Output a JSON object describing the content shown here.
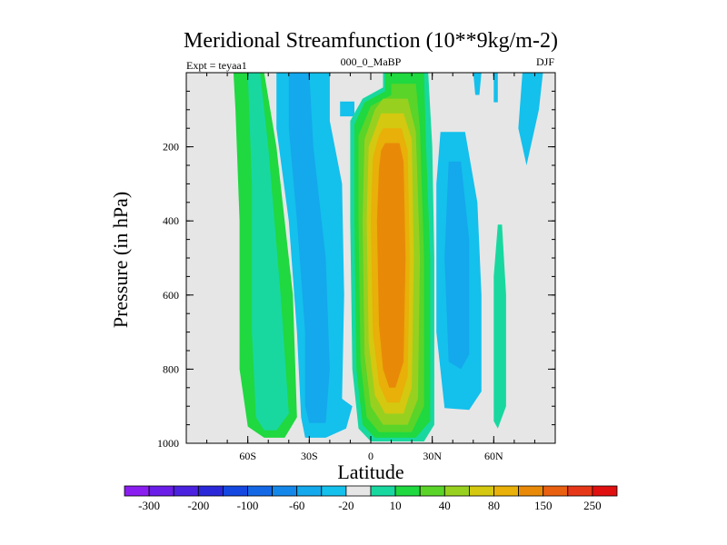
{
  "chart_data": {
    "type": "heatmap",
    "title": "Meridional Streamfunction (10**9kg/m-2)",
    "left_label": "Expt = teyaa1",
    "center_label": "000_0_MaBP",
    "right_label": "DJF",
    "xlabel": "Latitude",
    "ylabel": "Pressure (in hPa)",
    "xlim": [
      -90,
      90
    ],
    "ylim": [
      0,
      1000
    ],
    "y_inverted": true,
    "x_ticks": [
      {
        "value": -60,
        "label": "60S"
      },
      {
        "value": -30,
        "label": "30S"
      },
      {
        "value": 0,
        "label": "0"
      },
      {
        "value": 30,
        "label": "30N"
      },
      {
        "value": 60,
        "label": "60N"
      }
    ],
    "y_ticks": [
      {
        "value": 200,
        "label": "200"
      },
      {
        "value": 400,
        "label": "400"
      },
      {
        "value": 600,
        "label": "600"
      },
      {
        "value": 800,
        "label": "800"
      },
      {
        "value": 1000,
        "label": "1000"
      }
    ],
    "background_color": "#e6e6e6",
    "colorbar": {
      "colors": [
        "#8a1df0",
        "#6a1ee8",
        "#4a22e0",
        "#2a28d8",
        "#1448e0",
        "#1468e6",
        "#1488ea",
        "#14a8ec",
        "#14c0ec",
        "#e6e6e6",
        "#18d8a0",
        "#20d840",
        "#5ad428",
        "#98d020",
        "#d4c810",
        "#e8b008",
        "#e88a08",
        "#e86010",
        "#e63818",
        "#e01010"
      ],
      "labels": [
        {
          "after_index": 0,
          "label": "-300"
        },
        {
          "after_index": 2,
          "label": "-200"
        },
        {
          "after_index": 4,
          "label": "-100"
        },
        {
          "after_index": 6,
          "label": "-60"
        },
        {
          "after_index": 8,
          "label": "-20"
        },
        {
          "after_index": 10,
          "label": "10"
        },
        {
          "after_index": 12,
          "label": "40"
        },
        {
          "after_index": 14,
          "label": "80"
        },
        {
          "after_index": 16,
          "label": "150"
        },
        {
          "after_index": 18,
          "label": "250"
        }
      ]
    },
    "regions": [
      {
        "name": "sh-green-outer",
        "color": "#20d840",
        "poly": [
          [
            -67,
            0
          ],
          [
            -52,
            0
          ],
          [
            -46,
            200
          ],
          [
            -38,
            600
          ],
          [
            -36,
            930
          ],
          [
            -42,
            985
          ],
          [
            -52,
            985
          ],
          [
            -60,
            955
          ],
          [
            -64,
            800
          ],
          [
            -64,
            400
          ],
          [
            -66,
            100
          ]
        ]
      },
      {
        "name": "sh-green-inner",
        "color": "#18d8a0",
        "poly": [
          [
            -60,
            0
          ],
          [
            -54,
            0
          ],
          [
            -50,
            200
          ],
          [
            -44,
            600
          ],
          [
            -40,
            920
          ],
          [
            -46,
            965
          ],
          [
            -52,
            965
          ],
          [
            -56,
            930
          ],
          [
            -58,
            700
          ],
          [
            -58,
            300
          ]
        ]
      },
      {
        "name": "sh-blue-outer",
        "color": "#14c0ec",
        "poly": [
          [
            -46,
            0
          ],
          [
            -20,
            0
          ],
          [
            -20,
            130
          ],
          [
            -14,
            300
          ],
          [
            -13,
            600
          ],
          [
            -14,
            880
          ],
          [
            -9,
            900
          ],
          [
            -12,
            960
          ],
          [
            -22,
            985
          ],
          [
            -32,
            985
          ],
          [
            -34,
            930
          ],
          [
            -36,
            700
          ],
          [
            -40,
            400
          ],
          [
            -46,
            150
          ]
        ]
      },
      {
        "name": "sh-blue-inner",
        "color": "#14a8ec",
        "poly": [
          [
            -40,
            0
          ],
          [
            -30,
            0
          ],
          [
            -28,
            200
          ],
          [
            -22,
            500
          ],
          [
            -20,
            800
          ],
          [
            -22,
            945
          ],
          [
            -30,
            945
          ],
          [
            -32,
            900
          ],
          [
            -32,
            700
          ],
          [
            -36,
            400
          ],
          [
            -40,
            150
          ]
        ]
      },
      {
        "name": "sh-blue-patch",
        "color": "#14c0ec",
        "poly": [
          [
            -15,
            78
          ],
          [
            -8,
            78
          ],
          [
            -8,
            118
          ],
          [
            -15,
            118
          ]
        ]
      },
      {
        "name": "nh-blue-outer",
        "color": "#14c0ec",
        "poly": [
          [
            34,
            160
          ],
          [
            46,
            160
          ],
          [
            52,
            350
          ],
          [
            54,
            600
          ],
          [
            54,
            860
          ],
          [
            48,
            910
          ],
          [
            36,
            905
          ],
          [
            32,
            700
          ],
          [
            32,
            300
          ]
        ]
      },
      {
        "name": "nh-blue-inner",
        "color": "#14a8ec",
        "poly": [
          [
            38,
            240
          ],
          [
            44,
            240
          ],
          [
            48,
            450
          ],
          [
            48,
            760
          ],
          [
            44,
            800
          ],
          [
            38,
            780
          ],
          [
            36,
            500
          ]
        ]
      },
      {
        "name": "nh-teal-patch",
        "color": "#18d8a0",
        "poly": [
          [
            62,
            410
          ],
          [
            64,
            410
          ],
          [
            66,
            600
          ],
          [
            66,
            900
          ],
          [
            62,
            960
          ],
          [
            60,
            940
          ],
          [
            60,
            550
          ]
        ]
      },
      {
        "name": "far-nh-blue",
        "color": "#14c0ec",
        "poly": [
          [
            74,
            0
          ],
          [
            84,
            0
          ],
          [
            82,
            100
          ],
          [
            76,
            250
          ],
          [
            72,
            150
          ]
        ]
      },
      {
        "name": "top-blue-speck-1",
        "color": "#14c0ec",
        "poly": [
          [
            50,
            0
          ],
          [
            54,
            0
          ],
          [
            53,
            60
          ],
          [
            51,
            60
          ]
        ]
      },
      {
        "name": "top-blue-speck-2",
        "color": "#14c0ec",
        "poly": [
          [
            60,
            0
          ],
          [
            62,
            0
          ],
          [
            62,
            80
          ],
          [
            60,
            80
          ]
        ]
      },
      {
        "name": "core-teal",
        "color": "#18d8a0",
        "poly": [
          [
            6,
            0
          ],
          [
            28,
            0
          ],
          [
            30,
            200
          ],
          [
            31,
            500
          ],
          [
            31,
            950
          ],
          [
            26,
            995
          ],
          [
            0,
            995
          ],
          [
            -6,
            960
          ],
          [
            -9,
            800
          ],
          [
            -10,
            400
          ],
          [
            -10,
            130
          ],
          [
            -4,
            70
          ],
          [
            6,
            40
          ]
        ]
      },
      {
        "name": "core-green",
        "color": "#20d840",
        "poly": [
          [
            7,
            0
          ],
          [
            26,
            0
          ],
          [
            27,
            200
          ],
          [
            29,
            500
          ],
          [
            29,
            940
          ],
          [
            22,
            985
          ],
          [
            2,
            985
          ],
          [
            -4,
            950
          ],
          [
            -7,
            800
          ],
          [
            -8,
            400
          ],
          [
            -8,
            140
          ],
          [
            -3,
            80
          ],
          [
            7,
            50
          ]
        ]
      },
      {
        "name": "core-lime",
        "color": "#5ad428",
        "poly": [
          [
            10,
            30
          ],
          [
            22,
            30
          ],
          [
            24,
            150
          ],
          [
            26,
            500
          ],
          [
            26,
            900
          ],
          [
            20,
            970
          ],
          [
            4,
            970
          ],
          [
            -2,
            930
          ],
          [
            -5,
            780
          ],
          [
            -6,
            400
          ],
          [
            -6,
            170
          ],
          [
            0,
            90
          ],
          [
            10,
            60
          ]
        ]
      },
      {
        "name": "core-olive",
        "color": "#98d020",
        "poly": [
          [
            6,
            70
          ],
          [
            18,
            70
          ],
          [
            22,
            160
          ],
          [
            24,
            500
          ],
          [
            23,
            880
          ],
          [
            18,
            950
          ],
          [
            6,
            950
          ],
          [
            0,
            900
          ],
          [
            -3,
            760
          ],
          [
            -4,
            400
          ],
          [
            -3,
            180
          ],
          [
            2,
            100
          ]
        ]
      },
      {
        "name": "core-yellow",
        "color": "#d4c810",
        "poly": [
          [
            5,
            110
          ],
          [
            16,
            110
          ],
          [
            20,
            180
          ],
          [
            21,
            500
          ],
          [
            20,
            850
          ],
          [
            16,
            920
          ],
          [
            7,
            920
          ],
          [
            2,
            870
          ],
          [
            -1,
            730
          ],
          [
            -2,
            400
          ],
          [
            -1,
            200
          ],
          [
            3,
            140
          ]
        ]
      },
      {
        "name": "core-orange1",
        "color": "#e8b008",
        "poly": [
          [
            6,
            150
          ],
          [
            15,
            150
          ],
          [
            18,
            210
          ],
          [
            19,
            500
          ],
          [
            18,
            820
          ],
          [
            14,
            890
          ],
          [
            8,
            890
          ],
          [
            4,
            840
          ],
          [
            1,
            700
          ],
          [
            0,
            400
          ],
          [
            1,
            230
          ],
          [
            4,
            170
          ]
        ]
      },
      {
        "name": "core-orange2",
        "color": "#e88a08",
        "poly": [
          [
            7,
            190
          ],
          [
            14,
            190
          ],
          [
            16,
            240
          ],
          [
            17,
            500
          ],
          [
            16,
            780
          ],
          [
            12,
            850
          ],
          [
            9,
            850
          ],
          [
            6,
            800
          ],
          [
            4,
            680
          ],
          [
            3,
            400
          ],
          [
            4,
            260
          ],
          [
            5,
            210
          ]
        ]
      }
    ]
  }
}
